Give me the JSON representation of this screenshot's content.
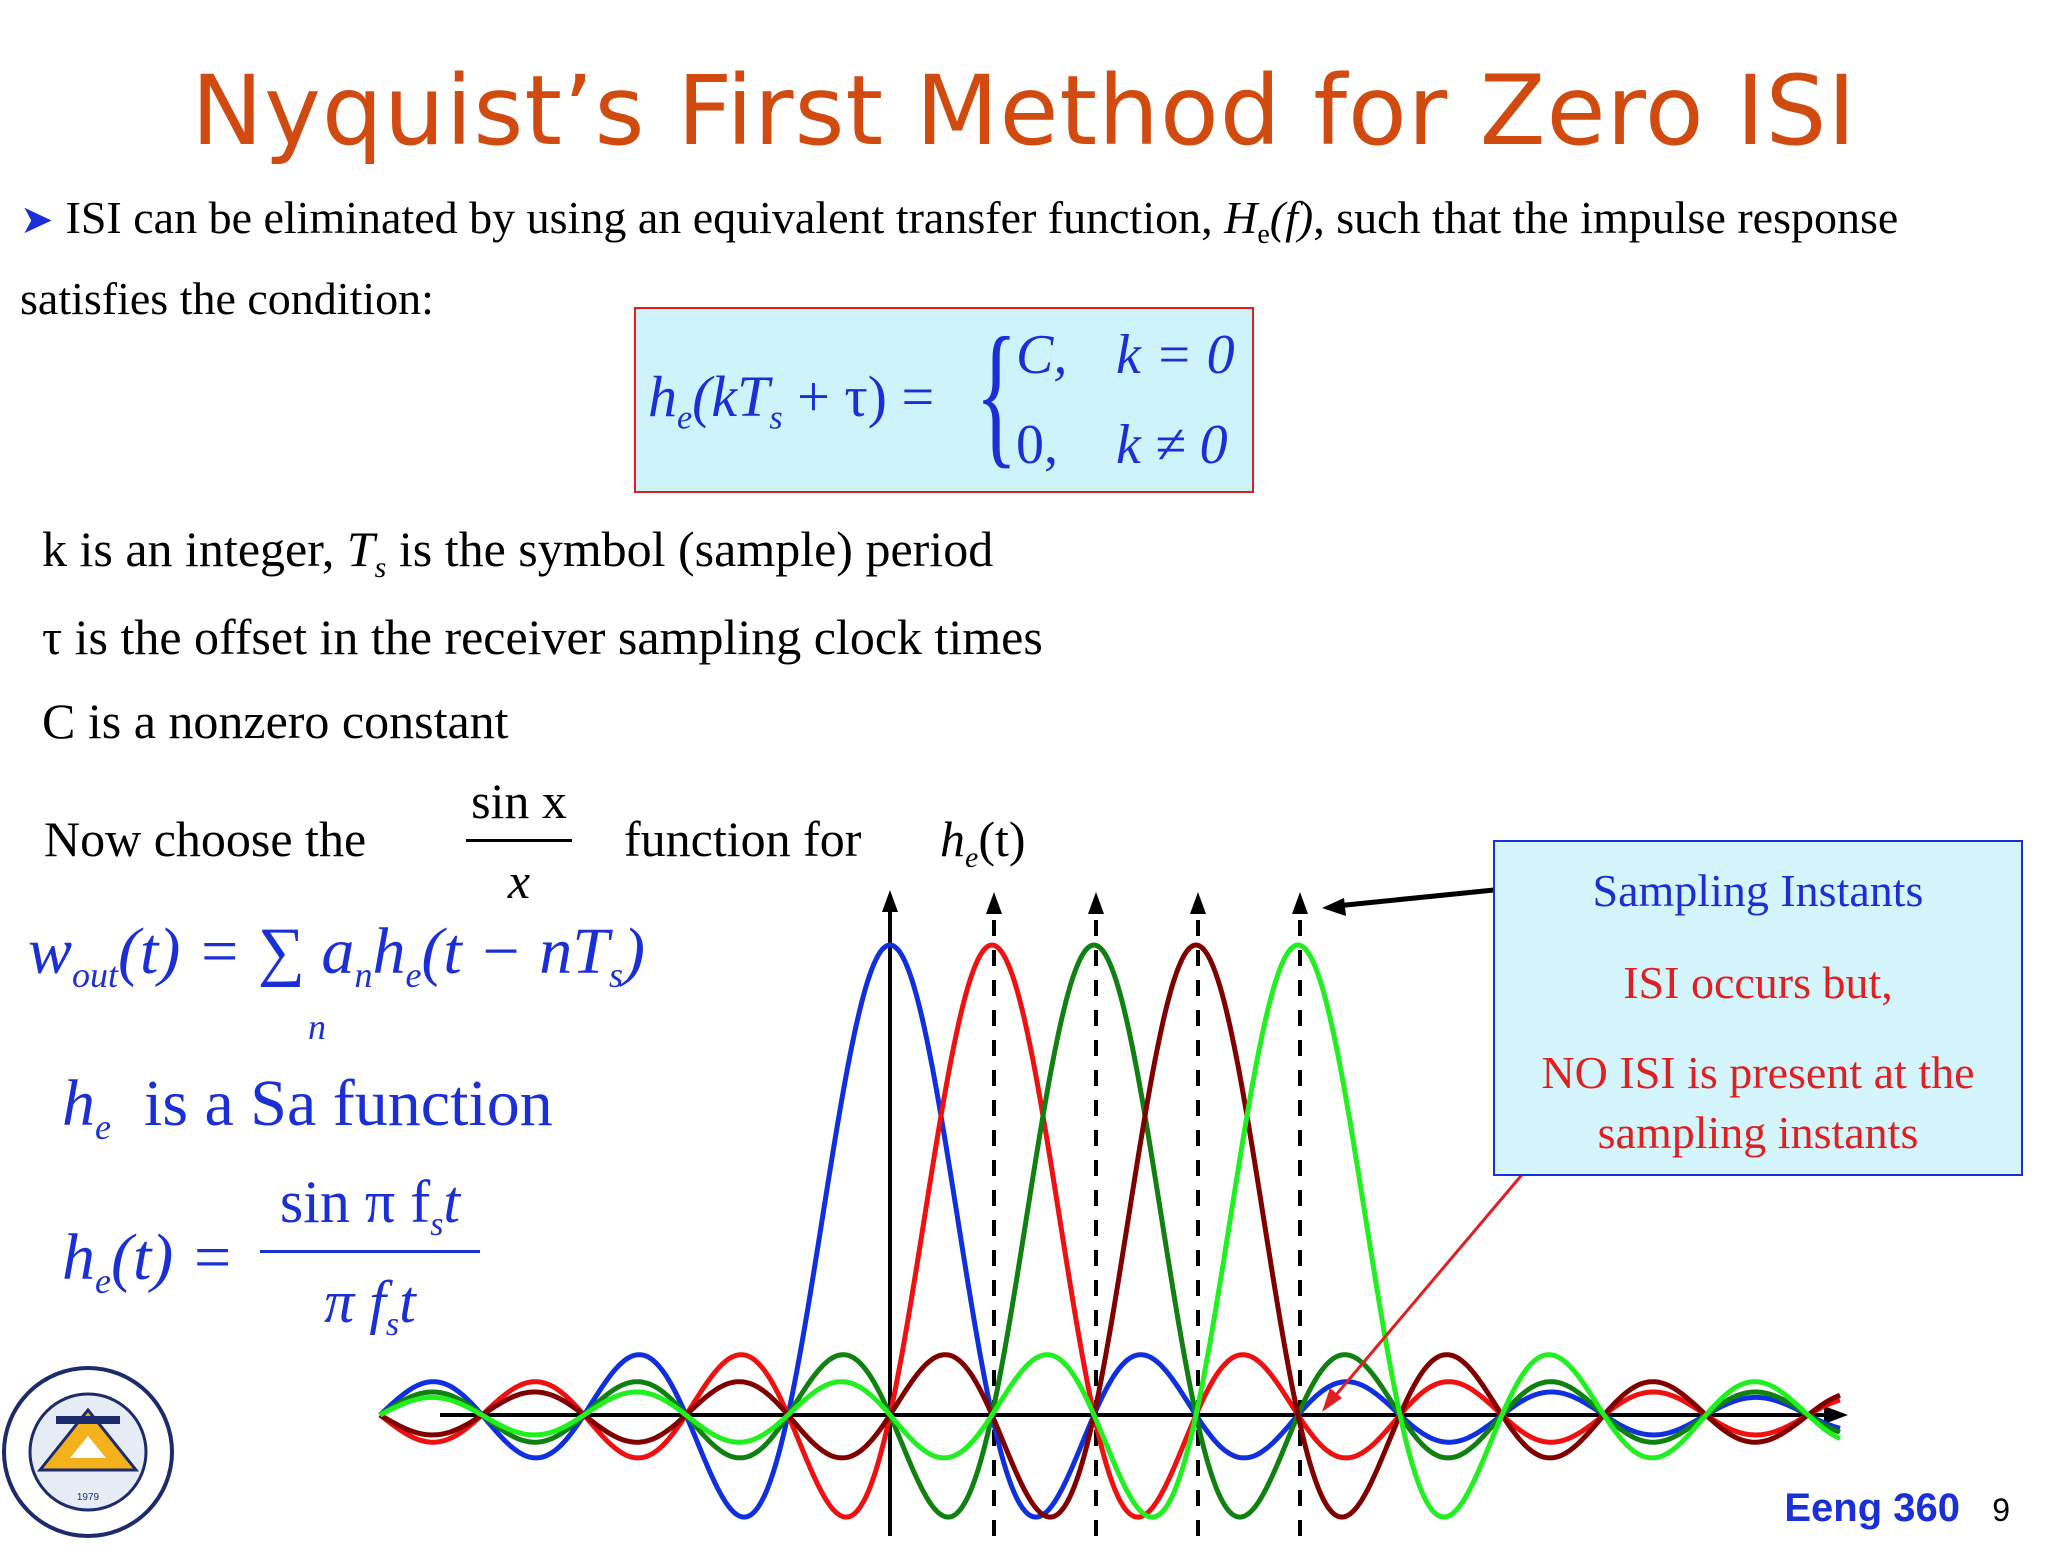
{
  "title": "Nyquist’s First Method for Zero ISI",
  "bullet": {
    "text_a": "ISI can be eliminated by using an equivalent transfer function, ",
    "func": "H",
    "func_sub": "e",
    "func_arg": "(f)",
    "text_b": ", such that the impulse response satisfies the condition:"
  },
  "condition": {
    "lhs": "h",
    "lhs_sub": "e",
    "lhs_arg_a": "(kT",
    "lhs_arg_sub": "s",
    "lhs_arg_b": " + τ) =",
    "case1_value": "C,",
    "case1_cond": "k = 0",
    "case2_value": "0,",
    "case2_cond": "k ≠ 0"
  },
  "definitions": {
    "k_a": "k  is  an  integer, ",
    "k_T": "T",
    "k_T_sub": "s",
    "k_b": "  is  the  symbol (sample) period",
    "tau_line": "τ  is  the  offset  in  the  receiver  sampling  clock  times",
    "c_line": "C  is  a  nonzero  constant"
  },
  "choose": {
    "prefix": "Now  choose  the",
    "frac_num": "sin x",
    "frac_den": "x",
    "suffix": "function  for",
    "he": "h",
    "he_sub": "e",
    "he_arg": "(t)"
  },
  "wout": {
    "w": "w",
    "w_sub": "out",
    "lhs_arg": "(t) = ∑ a",
    "a_sub": "n",
    "h": "h",
    "h_sub": "e",
    "h_arg": "(t − nT",
    "T_sub": "s",
    "close": ")",
    "sum_index": "n"
  },
  "sa_line": {
    "h": "h",
    "h_sub": "e",
    "text": "is a Sa function"
  },
  "he_def": {
    "lhs": "h",
    "lhs_sub": "e",
    "lhs_arg": "(t) =",
    "num": "sin π f",
    "num_sub": "s",
    "num_t": "t",
    "den": "π f",
    "den_sub": "s",
    "den_t": "t"
  },
  "callout": {
    "line1": "Sampling Instants",
    "line2": "ISI occurs but,",
    "line3": "NO ISI is present at the",
    "line4": "sampling instants"
  },
  "colors": {
    "title": "#d14a10",
    "math": "#1a2fd6",
    "red_text": "#e02020",
    "pulse_1": "#1030e0",
    "pulse_2": "#f01010",
    "pulse_3": "#108010",
    "pulse_4": "#800000",
    "pulse_5": "#20f020"
  },
  "chart_data": {
    "type": "line",
    "series": [
      {
        "color": "#1030e0",
        "peak_index": 0
      },
      {
        "color": "#f01010",
        "peak_index": 1
      },
      {
        "color": "#108010",
        "peak_index": 2
      },
      {
        "color": "#800000",
        "peak_index": 3
      },
      {
        "color": "#20f020",
        "peak_index": 4
      }
    ],
    "function": "sin(π fs t)/(π fs t)",
    "sampling_instants": [
      0,
      1,
      2,
      3,
      4
    ]
  },
  "footer": {
    "course": "Eeng 360",
    "page": "9"
  },
  "logo": {
    "ring_text": "EASTERN MEDITERRANEAN UNIVERSITY · DOĞU AKDENİZ ÜNİVERSİTESİ",
    "year": "1979"
  }
}
